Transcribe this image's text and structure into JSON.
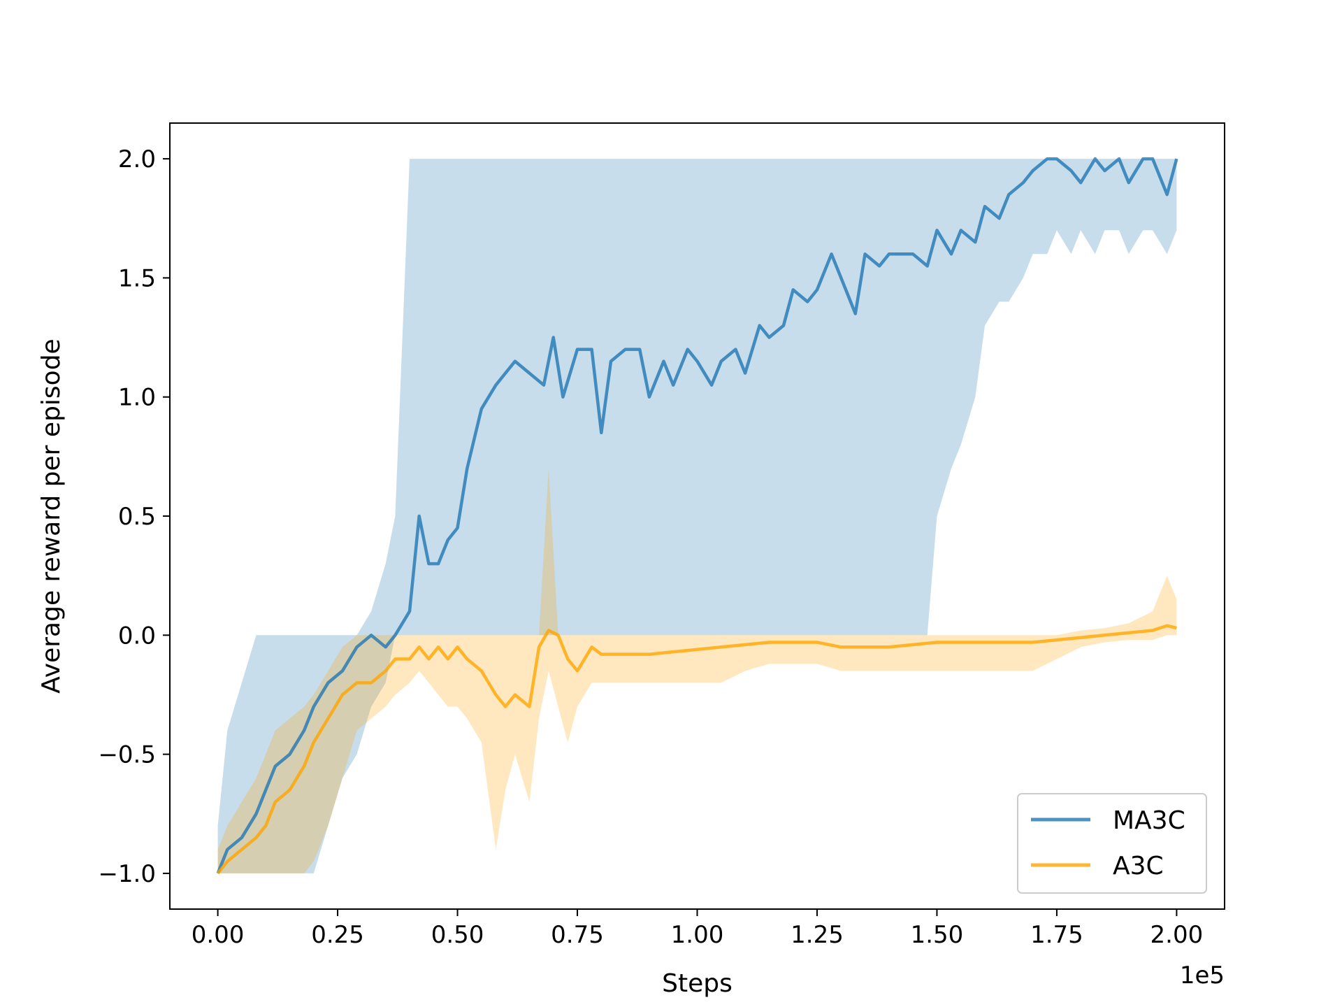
{
  "chart_data": {
    "type": "line",
    "xlabel": "Steps",
    "ylabel": "Average reward per episode",
    "x_offset_label": "1e5",
    "xlim": [
      -0.1,
      2.1
    ],
    "ylim": [
      -1.15,
      2.15
    ],
    "x_ticks": [
      0.0,
      0.25,
      0.5,
      0.75,
      1.0,
      1.25,
      1.5,
      1.75,
      2.0
    ],
    "x_tick_labels": [
      "0.00",
      "0.25",
      "0.50",
      "0.75",
      "1.00",
      "1.25",
      "1.50",
      "1.75",
      "2.00"
    ],
    "y_ticks": [
      -1.0,
      -0.5,
      0.0,
      0.5,
      1.0,
      1.5,
      2.0
    ],
    "y_tick_labels": [
      "−1.0",
      "−0.5",
      "0.0",
      "0.5",
      "1.0",
      "1.5",
      "2.0"
    ],
    "legend_position": "lower-right",
    "grid": false,
    "series": [
      {
        "name": "MA3C",
        "color": "#1f77b4",
        "x": [
          0.0,
          0.02,
          0.05,
          0.08,
          0.1,
          0.12,
          0.15,
          0.18,
          0.2,
          0.23,
          0.26,
          0.29,
          0.32,
          0.35,
          0.37,
          0.4,
          0.42,
          0.44,
          0.46,
          0.48,
          0.5,
          0.52,
          0.55,
          0.58,
          0.6,
          0.62,
          0.65,
          0.68,
          0.7,
          0.72,
          0.75,
          0.78,
          0.8,
          0.82,
          0.85,
          0.88,
          0.9,
          0.93,
          0.95,
          0.98,
          1.0,
          1.03,
          1.05,
          1.08,
          1.1,
          1.13,
          1.15,
          1.18,
          1.2,
          1.23,
          1.25,
          1.28,
          1.3,
          1.33,
          1.35,
          1.38,
          1.4,
          1.43,
          1.45,
          1.48,
          1.5,
          1.53,
          1.55,
          1.58,
          1.6,
          1.63,
          1.65,
          1.68,
          1.7,
          1.73,
          1.75,
          1.78,
          1.8,
          1.83,
          1.85,
          1.88,
          1.9,
          1.93,
          1.95,
          1.98,
          2.0
        ],
        "y": [
          -1.0,
          -0.9,
          -0.85,
          -0.75,
          -0.65,
          -0.55,
          -0.5,
          -0.4,
          -0.3,
          -0.2,
          -0.15,
          -0.05,
          0.0,
          -0.05,
          0.0,
          0.1,
          0.5,
          0.3,
          0.3,
          0.4,
          0.45,
          0.7,
          0.95,
          1.05,
          1.1,
          1.15,
          1.1,
          1.05,
          1.25,
          1.0,
          1.2,
          1.2,
          0.85,
          1.15,
          1.2,
          1.2,
          1.0,
          1.15,
          1.05,
          1.2,
          1.15,
          1.05,
          1.15,
          1.2,
          1.1,
          1.3,
          1.25,
          1.3,
          1.45,
          1.4,
          1.45,
          1.6,
          1.5,
          1.35,
          1.6,
          1.55,
          1.6,
          1.6,
          1.6,
          1.55,
          1.7,
          1.6,
          1.7,
          1.65,
          1.8,
          1.75,
          1.85,
          1.9,
          1.95,
          2.0,
          2.0,
          1.95,
          1.9,
          2.0,
          1.95,
          2.0,
          1.9,
          2.0,
          2.0,
          1.85,
          2.0
        ],
        "lower": [
          -1.0,
          -1.0,
          -1.0,
          -1.0,
          -1.0,
          -1.0,
          -1.0,
          -1.0,
          -1.0,
          -0.8,
          -0.6,
          -0.5,
          -0.3,
          -0.2,
          0.0,
          0.0,
          0.0,
          0.0,
          0.0,
          0.0,
          0.0,
          0.0,
          0.0,
          0.0,
          0.0,
          0.0,
          0.0,
          0.0,
          0.0,
          0.0,
          0.0,
          0.0,
          0.0,
          0.0,
          0.0,
          0.0,
          0.0,
          0.0,
          0.0,
          0.0,
          0.0,
          0.0,
          0.0,
          0.0,
          0.0,
          0.0,
          0.0,
          0.0,
          0.0,
          0.0,
          0.0,
          0.0,
          0.0,
          0.0,
          0.0,
          0.0,
          0.0,
          0.0,
          0.0,
          0.0,
          0.5,
          0.7,
          0.8,
          1.0,
          1.3,
          1.4,
          1.4,
          1.5,
          1.6,
          1.6,
          1.7,
          1.6,
          1.7,
          1.6,
          1.7,
          1.7,
          1.6,
          1.7,
          1.7,
          1.6,
          1.7
        ],
        "upper": [
          -0.8,
          -0.4,
          -0.2,
          0.0,
          0.0,
          0.0,
          0.0,
          0.0,
          0.0,
          0.0,
          0.0,
          0.0,
          0.1,
          0.3,
          0.5,
          2.0,
          2.0,
          2.0,
          2.0,
          2.0,
          2.0,
          2.0,
          2.0,
          2.0,
          2.0,
          2.0,
          2.0,
          2.0,
          2.0,
          2.0,
          2.0,
          2.0,
          2.0,
          2.0,
          2.0,
          2.0,
          2.0,
          2.0,
          2.0,
          2.0,
          2.0,
          2.0,
          2.0,
          2.0,
          2.0,
          2.0,
          2.0,
          2.0,
          2.0,
          2.0,
          2.0,
          2.0,
          2.0,
          2.0,
          2.0,
          2.0,
          2.0,
          2.0,
          2.0,
          2.0,
          2.0,
          2.0,
          2.0,
          2.0,
          2.0,
          2.0,
          2.0,
          2.0,
          2.0,
          2.0,
          2.0,
          2.0,
          2.0,
          2.0,
          2.0,
          2.0,
          2.0,
          2.0,
          2.0,
          2.0,
          2.0
        ]
      },
      {
        "name": "A3C",
        "color": "#ffa500",
        "x": [
          0.0,
          0.02,
          0.05,
          0.08,
          0.1,
          0.12,
          0.15,
          0.18,
          0.2,
          0.23,
          0.26,
          0.29,
          0.32,
          0.35,
          0.37,
          0.4,
          0.42,
          0.44,
          0.46,
          0.48,
          0.5,
          0.52,
          0.55,
          0.58,
          0.6,
          0.62,
          0.65,
          0.67,
          0.69,
          0.71,
          0.73,
          0.75,
          0.78,
          0.8,
          0.85,
          0.9,
          0.95,
          1.0,
          1.05,
          1.1,
          1.15,
          1.2,
          1.25,
          1.3,
          1.35,
          1.4,
          1.45,
          1.5,
          1.55,
          1.6,
          1.65,
          1.7,
          1.75,
          1.8,
          1.85,
          1.9,
          1.95,
          1.98,
          2.0
        ],
        "y": [
          -1.0,
          -0.95,
          -0.9,
          -0.85,
          -0.8,
          -0.7,
          -0.65,
          -0.55,
          -0.45,
          -0.35,
          -0.25,
          -0.2,
          -0.2,
          -0.15,
          -0.1,
          -0.1,
          -0.05,
          -0.1,
          -0.05,
          -0.1,
          -0.05,
          -0.1,
          -0.15,
          -0.25,
          -0.3,
          -0.25,
          -0.3,
          -0.05,
          0.02,
          0.0,
          -0.1,
          -0.15,
          -0.05,
          -0.08,
          -0.08,
          -0.08,
          -0.07,
          -0.06,
          -0.05,
          -0.04,
          -0.03,
          -0.03,
          -0.03,
          -0.05,
          -0.05,
          -0.05,
          -0.04,
          -0.03,
          -0.03,
          -0.03,
          -0.03,
          -0.03,
          -0.02,
          -0.01,
          0.0,
          0.01,
          0.02,
          0.04,
          0.03
        ],
        "lower": [
          -1.0,
          -1.0,
          -1.0,
          -1.0,
          -1.0,
          -1.0,
          -1.0,
          -1.0,
          -0.95,
          -0.8,
          -0.6,
          -0.4,
          -0.35,
          -0.3,
          -0.25,
          -0.2,
          -0.15,
          -0.2,
          -0.25,
          -0.3,
          -0.3,
          -0.35,
          -0.45,
          -0.9,
          -0.65,
          -0.5,
          -0.7,
          -0.35,
          -0.15,
          -0.3,
          -0.45,
          -0.3,
          -0.2,
          -0.2,
          -0.2,
          -0.2,
          -0.2,
          -0.2,
          -0.2,
          -0.15,
          -0.12,
          -0.12,
          -0.12,
          -0.15,
          -0.15,
          -0.15,
          -0.15,
          -0.15,
          -0.15,
          -0.15,
          -0.15,
          -0.15,
          -0.1,
          -0.05,
          -0.03,
          -0.02,
          -0.02,
          0.0,
          0.0
        ],
        "upper": [
          -0.9,
          -0.8,
          -0.7,
          -0.6,
          -0.5,
          -0.4,
          -0.35,
          -0.3,
          -0.25,
          -0.15,
          -0.05,
          0.0,
          0.0,
          0.0,
          0.0,
          0.0,
          0.0,
          0.0,
          0.0,
          0.0,
          0.0,
          0.0,
          0.0,
          0.0,
          0.0,
          0.0,
          0.0,
          0.0,
          0.7,
          0.0,
          0.0,
          0.0,
          0.0,
          0.0,
          0.0,
          0.0,
          0.0,
          0.0,
          0.0,
          0.0,
          0.0,
          0.0,
          0.0,
          0.0,
          0.0,
          0.0,
          0.0,
          0.0,
          0.0,
          0.0,
          0.0,
          0.0,
          0.0,
          0.02,
          0.03,
          0.05,
          0.1,
          0.25,
          0.15
        ]
      }
    ]
  }
}
